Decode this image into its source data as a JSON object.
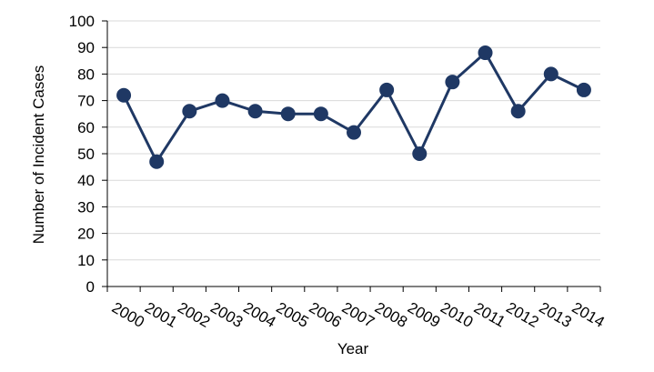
{
  "chart_data": {
    "type": "line",
    "title": "",
    "xlabel": "Year",
    "ylabel": "Number of Incident Cases",
    "categories": [
      "2000",
      "2001",
      "2002",
      "2003",
      "2004",
      "2005",
      "2006",
      "2007",
      "2008",
      "2009",
      "2010",
      "2011",
      "2012",
      "2013",
      "2014"
    ],
    "series": [
      {
        "values": [
          72,
          47,
          66,
          70,
          66,
          65,
          65,
          58,
          74,
          50,
          77,
          88,
          66,
          80,
          74
        ]
      }
    ],
    "ylim": [
      0,
      100
    ],
    "yticks": [
      0,
      10,
      20,
      30,
      40,
      50,
      60,
      70,
      80,
      90,
      100
    ],
    "grid": true,
    "legend": "none",
    "colors": {
      "series": "#1f3864",
      "grid": "#d9d9d9",
      "axis": "#000000"
    }
  }
}
